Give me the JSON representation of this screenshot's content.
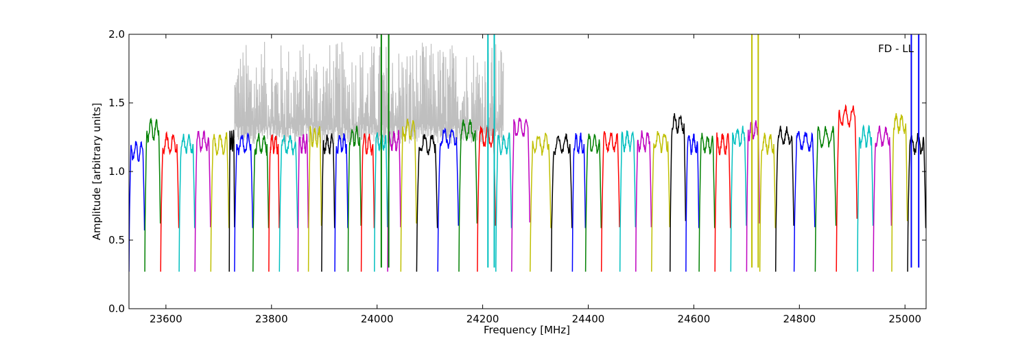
{
  "chart_data": {
    "type": "line",
    "title": "",
    "annotation": "FD - LL",
    "xlabel": "Frequency [MHz]",
    "ylabel": "Amplitude [arbitrary units]",
    "xlim": [
      23530,
      25040
    ],
    "ylim": [
      0.0,
      2.0
    ],
    "x_ticks": [
      23600,
      23800,
      24000,
      24200,
      24400,
      24600,
      24800,
      25000
    ],
    "x_tick_labels": [
      "23600",
      "23800",
      "24000",
      "24200",
      "24400",
      "24600",
      "24800",
      "25000"
    ],
    "y_ticks": [
      0.0,
      0.5,
      1.0,
      1.5,
      2.0
    ],
    "y_tick_labels": [
      "0.0",
      "0.5",
      "1.0",
      "1.5",
      "2.0"
    ],
    "grid": false,
    "legend": "none",
    "colors": {
      "blue": "#0000ff",
      "green": "#008000",
      "red": "#ff0000",
      "cyan": "#00bfbf",
      "magenta": "#bf00bf",
      "yellow": "#bfbf00",
      "black": "#000000",
      "gray": "#bfbfbf"
    },
    "color_cycle": [
      "blue",
      "green",
      "red",
      "cyan",
      "magenta",
      "yellow",
      "black"
    ],
    "band_edges": [
      23530,
      23560,
      23590,
      23625,
      23655,
      23685,
      23720,
      23730,
      23765,
      23795,
      23815,
      23850,
      23870,
      23895,
      23920,
      23945,
      23970,
      23995,
      24020,
      24045,
      24075,
      24115,
      24155,
      24190,
      24225,
      24255,
      24290,
      24330,
      24370,
      24395,
      24425,
      24460,
      24490,
      24520,
      24555,
      24585,
      24610,
      24640,
      24670,
      24700,
      24725,
      24755,
      24790,
      24830,
      24870,
      24910,
      24940,
      24975,
      25005,
      25040
    ],
    "band_levels": [
      1.15,
      1.3,
      1.2,
      1.2,
      1.22,
      1.2,
      1.22,
      1.2,
      1.2,
      1.2,
      1.2,
      1.2,
      1.25,
      1.2,
      1.2,
      1.25,
      1.2,
      1.22,
      1.22,
      1.3,
      1.2,
      1.25,
      1.3,
      1.25,
      1.2,
      1.32,
      1.2,
      1.2,
      1.2,
      1.2,
      1.22,
      1.22,
      1.22,
      1.22,
      1.35,
      1.2,
      1.2,
      1.2,
      1.25,
      1.3,
      1.2,
      1.25,
      1.22,
      1.25,
      1.4,
      1.25,
      1.25,
      1.35,
      1.2
    ],
    "band_dip_min": 0.27,
    "gray_region": [
      23730,
      24240
    ],
    "gray_level_range": [
      1.3,
      1.95
    ],
    "spikes": [
      {
        "x": 24008,
        "color": "green",
        "y": 2.0
      },
      {
        "x": 24022,
        "color": "green",
        "y": 2.0
      },
      {
        "x": 24210,
        "color": "cyan",
        "y": 2.0
      },
      {
        "x": 24222,
        "color": "cyan",
        "y": 2.0
      },
      {
        "x": 24710,
        "color": "yellow",
        "y": 2.0
      },
      {
        "x": 24722,
        "color": "yellow",
        "y": 2.0
      },
      {
        "x": 25012,
        "color": "blue",
        "y": 2.0
      },
      {
        "x": 25026,
        "color": "blue",
        "y": 2.0
      }
    ]
  }
}
